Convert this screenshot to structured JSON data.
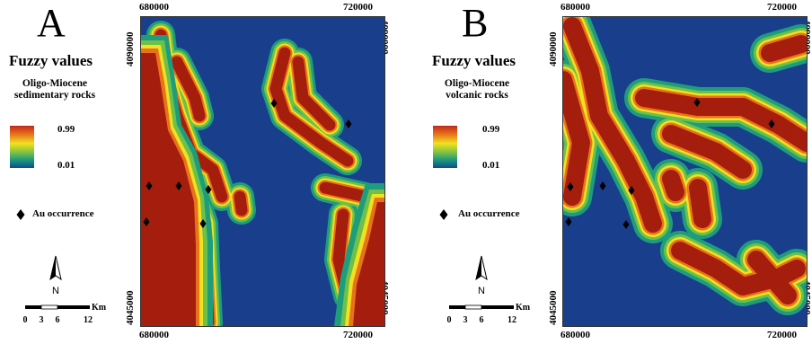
{
  "panels": [
    {
      "letter": "A",
      "legend_title": "Fuzzy values",
      "legend_subtitle_1": "Oligo-Miocene",
      "legend_subtitle_2": "sedimentary rocks",
      "ramp_max": "0.99",
      "ramp_min": "0.01",
      "au_label": "Au occurrence",
      "north_label": "N",
      "scale_unit": "Km",
      "scale_ticks": [
        "0",
        "3",
        "6",
        "12"
      ],
      "x_left": "680000",
      "x_right": "720000",
      "y_top": "4090000",
      "y_bottom": "4045000"
    },
    {
      "letter": "B",
      "legend_title": "Fuzzy values",
      "legend_subtitle_1": "Oligo-Miocene",
      "legend_subtitle_2": "volcanic rocks",
      "ramp_max": "0.99",
      "ramp_min": "0.01",
      "au_label": "Au occurrence",
      "north_label": "N",
      "scale_unit": "Km",
      "scale_ticks": [
        "0",
        "3",
        "6",
        "12"
      ],
      "x_left": "680000",
      "x_right": "720000",
      "y_top": "4090000",
      "y_bottom": "4045000"
    }
  ],
  "colors": {
    "background": "#193f8c",
    "high": "#a51e0d",
    "mid_orange": "#e8731c",
    "mid_yellow": "#f1e11f",
    "mid_green": "#6ec04a",
    "low_teal": "#1e9d7c"
  }
}
